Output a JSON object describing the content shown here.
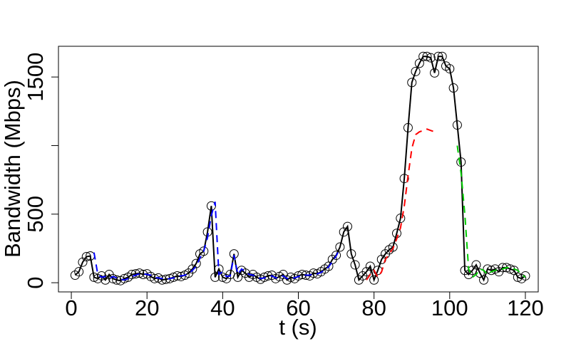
{
  "chart_data": {
    "type": "line",
    "x_label": "t (s)",
    "y_label": "Bandwidth (Mbps)",
    "xlim": [
      -3.4,
      123.4
    ],
    "ylim": [
      -67,
      1724
    ],
    "xticks": [
      0,
      20,
      40,
      60,
      80,
      100,
      120
    ],
    "yticks": [
      0,
      500,
      {
        "value": 1000,
        "label": null
      },
      1500
    ],
    "series": [
      {
        "color": "#000000",
        "dash": false,
        "markers": true,
        "x": [
          1,
          2,
          3,
          4,
          5,
          6,
          7,
          8,
          9,
          10,
          11,
          12,
          13,
          14,
          15,
          16,
          17,
          18,
          19,
          20,
          21,
          22,
          23,
          24,
          25,
          26,
          27,
          28,
          29,
          30,
          31,
          32,
          33,
          34,
          35,
          36,
          37,
          38,
          39,
          40,
          41,
          42,
          43,
          44,
          45,
          46,
          47,
          48,
          49,
          50,
          51,
          52,
          53,
          54,
          55,
          56,
          57,
          58,
          59,
          60,
          61,
          62,
          63,
          64,
          65,
          66,
          67,
          68,
          69,
          70,
          71,
          72,
          73,
          74,
          75,
          76,
          77,
          78,
          79,
          80,
          81,
          82,
          83,
          84,
          85,
          86,
          87,
          88,
          89,
          90,
          91,
          92,
          93,
          94,
          95,
          96,
          97,
          98,
          99,
          100,
          101,
          102,
          103,
          104,
          105,
          106,
          107,
          108,
          109,
          110,
          111,
          112,
          113,
          114,
          115,
          116,
          117,
          118,
          119,
          120
        ],
        "values": [
          55,
          80,
          150,
          190,
          195,
          40,
          30,
          50,
          20,
          60,
          30,
          20,
          15,
          30,
          40,
          60,
          65,
          70,
          60,
          65,
          45,
          30,
          35,
          20,
          25,
          30,
          40,
          50,
          45,
          55,
          70,
          100,
          140,
          210,
          230,
          370,
          560,
          40,
          100,
          40,
          30,
          60,
          210,
          40,
          90,
          70,
          40,
          60,
          40,
          25,
          40,
          50,
          55,
          30,
          45,
          60,
          20,
          40,
          30,
          50,
          60,
          55,
          50,
          70,
          65,
          80,
          100,
          120,
          170,
          200,
          260,
          370,
          410,
          210,
          130,
          20,
          50,
          80,
          120,
          20,
          90,
          170,
          210,
          240,
          260,
          360,
          470,
          760,
          1130,
          1460,
          1540,
          1600,
          1650,
          1650,
          1640,
          1530,
          1650,
          1650,
          1580,
          1560,
          1420,
          1150,
          880,
          90,
          60,
          90,
          130,
          70,
          20,
          100,
          90,
          100,
          80,
          110,
          110,
          100,
          90,
          40,
          30,
          50
        ]
      },
      {
        "color": "#0000ff",
        "dash": true,
        "markers": false,
        "x": [
          6,
          7,
          8,
          9,
          10,
          11,
          12,
          13,
          14,
          15,
          16,
          17,
          18,
          19,
          20,
          21,
          22,
          23,
          24,
          25,
          26,
          27,
          28,
          29,
          30,
          31,
          32,
          33,
          34,
          35,
          36,
          37,
          38,
          39,
          40,
          41,
          42,
          43,
          44,
          45,
          46,
          47,
          48,
          49,
          50,
          51,
          52,
          53,
          54,
          55,
          56,
          57,
          58,
          59,
          60,
          61,
          62,
          63,
          64,
          65,
          66,
          67,
          68,
          69,
          70,
          71
        ],
        "values": [
          220,
          60,
          40,
          45,
          30,
          45,
          35,
          25,
          20,
          30,
          45,
          55,
          65,
          65,
          60,
          55,
          40,
          35,
          30,
          25,
          30,
          35,
          45,
          50,
          55,
          65,
          90,
          120,
          180,
          230,
          330,
          490,
          590,
          60,
          80,
          45,
          50,
          200,
          60,
          100,
          80,
          60,
          55,
          45,
          30,
          35,
          45,
          50,
          35,
          40,
          50,
          30,
          35,
          35,
          45,
          55,
          55,
          55,
          65,
          65,
          75,
          95,
          115,
          155,
          195,
          250
        ]
      },
      {
        "color": "#ff0000",
        "dash": true,
        "markers": false,
        "x": [
          78,
          79,
          80,
          81,
          82,
          83,
          84,
          85,
          86,
          87,
          88,
          89,
          90,
          91,
          92,
          93,
          94,
          95,
          96
        ],
        "values": [
          20,
          60,
          90,
          40,
          80,
          170,
          210,
          250,
          320,
          400,
          560,
          780,
          980,
          1080,
          1100,
          1110,
          1120,
          1110,
          1100
        ]
      },
      {
        "color": "#00cc00",
        "dash": true,
        "markers": false,
        "x": [
          102,
          103,
          104,
          105,
          106,
          107,
          108,
          109,
          110,
          111,
          112,
          113,
          114,
          115,
          116,
          117,
          118,
          119,
          120
        ],
        "values": [
          1000,
          800,
          500,
          100,
          40,
          60,
          100,
          90,
          60,
          80,
          90,
          100,
          100,
          110,
          110,
          100,
          90,
          60,
          40
        ]
      }
    ]
  }
}
